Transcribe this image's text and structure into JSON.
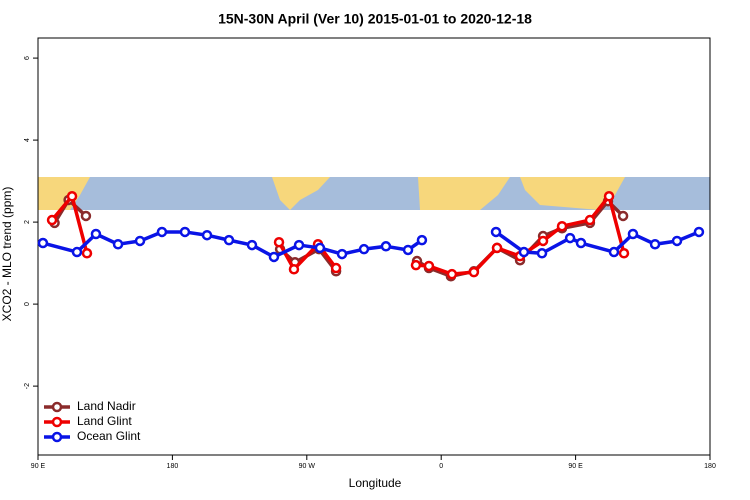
{
  "chart_data": {
    "type": "line",
    "title": "15N-30N April (Ver 10)   2015-01-01 to 2020-12-18",
    "x_label": "Longitude",
    "y_label": "XCO2 - MLO trend (ppm)",
    "xlim": [
      90,
      540
    ],
    "ylim": [
      -3.68,
      6.49
    ],
    "xticks": [
      {
        "value": 90,
        "label": "90 E"
      },
      180,
      {
        "value": 270,
        "label": "90 W"
      },
      {
        "value": 360,
        "label": "0"
      },
      {
        "value": 450,
        "label": "90 E"
      },
      {
        "value": 540,
        "label": "180"
      }
    ],
    "yticks": [
      -2,
      0,
      2,
      4,
      6
    ],
    "legend": "bottom-left",
    "series": [
      {
        "name": "Land Nadir",
        "color": "#8b2b2b",
        "x": [
          101.1,
          110.5,
          122.1,
          null,
          252.1,
          262.1,
          278.2,
          289.6,
          null,
          343.8,
          351.8,
          366.5,
          381.9,
          397.4,
          412.8,
          428.2,
          440.9,
          459.6,
          471.7,
          481.8
        ],
        "values": [
          1.98,
          2.54,
          2.15,
          null,
          1.34,
          1.02,
          1.34,
          0.8,
          null,
          1.05,
          0.88,
          0.68,
          0.8,
          1.37,
          1.07,
          1.66,
          1.85,
          1.98,
          2.51,
          2.15
        ]
      },
      {
        "name": "Land Glint",
        "color": "#ee0000",
        "x": [
          99.4,
          112.8,
          122.8,
          null,
          251.4,
          261.4,
          277.5,
          289.6,
          null,
          343.1,
          351.8,
          367.2,
          381.9,
          397.4,
          412.8,
          428.2,
          440.9,
          459.6,
          472.4,
          482.4
        ],
        "values": [
          2.05,
          2.63,
          1.24,
          null,
          1.51,
          0.85,
          1.46,
          0.88,
          null,
          0.95,
          0.93,
          0.73,
          0.78,
          1.37,
          1.17,
          1.54,
          1.9,
          2.05,
          2.63,
          1.24
        ]
      },
      {
        "name": "Ocean Glint",
        "color": "#0a14e6",
        "x": [
          93.3,
          116.1,
          128.8,
          143.6,
          158.3,
          173.0,
          188.4,
          203.2,
          217.9,
          233.3,
          248.0,
          264.8,
          278.8,
          293.6,
          308.3,
          323.0,
          337.8,
          347.1,
          null,
          396.7,
          415.4,
          427.5,
          446.3,
          453.6,
          475.7,
          488.4,
          503.2,
          517.9,
          532.6
        ],
        "values": [
          1.49,
          1.27,
          1.71,
          1.46,
          1.54,
          1.76,
          1.76,
          1.68,
          1.56,
          1.44,
          1.15,
          1.44,
          1.37,
          1.22,
          1.34,
          1.41,
          1.32,
          1.56,
          null,
          1.76,
          1.27,
          1.24,
          1.61,
          1.49,
          1.27,
          1.71,
          1.46,
          1.54,
          1.76
        ]
      }
    ]
  }
}
